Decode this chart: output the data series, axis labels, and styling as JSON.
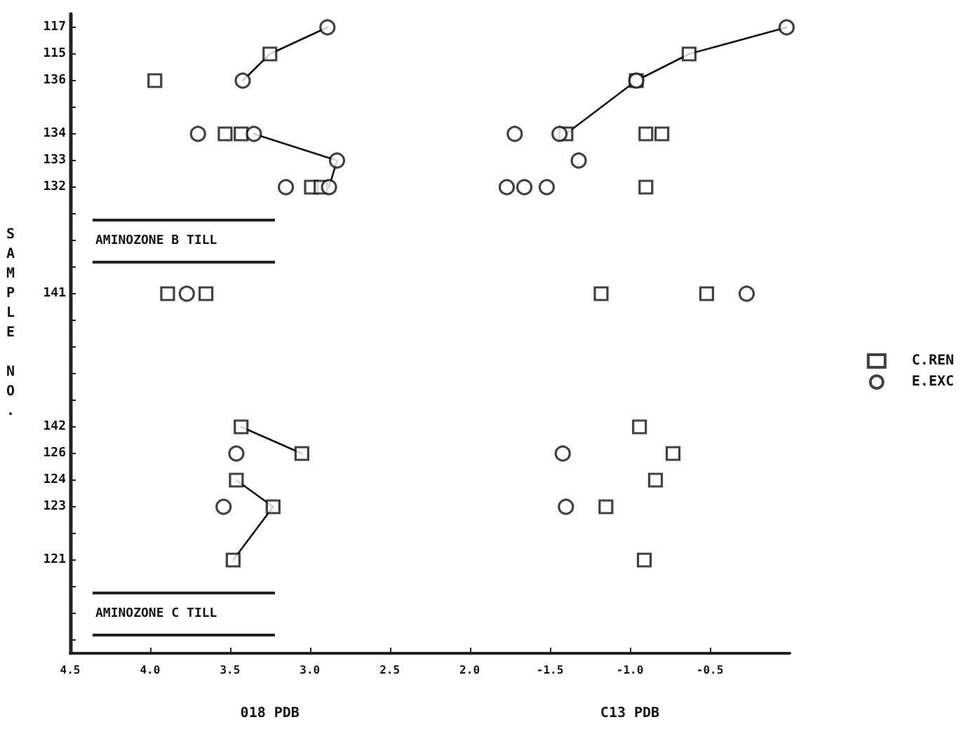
{
  "chart_data": [
    {
      "type": "scatter",
      "orientation": "horizontal",
      "xlabel": "018 PDB",
      "ylabel": "SAMPLE NO.",
      "legend": false,
      "categories": [
        "117",
        "115",
        "136",
        null,
        "134",
        "133",
        "132",
        null,
        null,
        null,
        "141",
        null,
        null,
        null,
        null,
        "142",
        "126",
        "124",
        "123",
        null,
        "121",
        null,
        null,
        null
      ],
      "xlim": [
        4.5,
        2.0
      ],
      "xticks": [
        {
          "value": 4.5,
          "label": "4.5"
        },
        {
          "value": 4,
          "label": "4.0"
        },
        {
          "value": 3.5,
          "label": "3.5"
        },
        {
          "value": 3,
          "label": "3.0"
        },
        {
          "value": 2.5,
          "label": "2.5"
        },
        {
          "value": 2,
          "label": "2.0"
        }
      ],
      "annotations": [
        "AMINOZONE B TILL",
        "AMINOZONE C TILL"
      ],
      "series": [
        {
          "type": "scatter",
          "marker": "square",
          "color": "#111111",
          "x": [
            "115",
            "136",
            "134",
            "134",
            "132",
            "132",
            "141",
            "141",
            "142",
            "126",
            "124",
            "123",
            "121"
          ],
          "values": [
            3.25,
            3.97,
            3.53,
            3.43,
            2.99,
            2.93,
            3.89,
            3.65,
            3.43,
            3.05,
            3.46,
            3.23,
            3.48
          ]
        },
        {
          "type": "scatter",
          "marker": "circle",
          "color": "#111111",
          "x": [
            "117",
            "136",
            "134",
            "134",
            "133",
            "132",
            "132",
            "141",
            "126",
            "123"
          ],
          "values": [
            2.89,
            3.42,
            3.7,
            3.35,
            2.83,
            3.15,
            2.88,
            3.77,
            3.46,
            3.54
          ]
        },
        {
          "type": "line",
          "marker": "none",
          "color": "#111111",
          "x": [
            "117",
            "115",
            "136"
          ],
          "values": [
            2.89,
            3.25,
            3.42
          ]
        },
        {
          "type": "line",
          "marker": "none",
          "color": "#111111",
          "x": [
            "134",
            "133",
            "132"
          ],
          "values": [
            3.35,
            2.83,
            2.88
          ]
        },
        {
          "type": "line",
          "marker": "none",
          "color": "#111111",
          "x": [
            "142",
            "126"
          ],
          "values": [
            3.43,
            3.05
          ]
        },
        {
          "type": "line",
          "marker": "none",
          "color": "#111111",
          "x": [
            "124",
            "123",
            "121"
          ],
          "values": [
            3.46,
            3.23,
            3.48
          ]
        }
      ]
    },
    {
      "type": "scatter",
      "orientation": "horizontal",
      "xlabel": "C13 PDB",
      "legend": "right",
      "tick_labels": "x",
      "categories": [
        "117",
        "115",
        "136",
        null,
        "134",
        "133",
        "132",
        null,
        null,
        null,
        "141",
        null,
        null,
        null,
        null,
        "142",
        "126",
        "124",
        "123",
        null,
        "121",
        null,
        null,
        null
      ],
      "xlim": [
        -2.0,
        0.0
      ],
      "xticks": [
        {
          "value": -1.5,
          "label": "-1.5"
        },
        {
          "value": -1,
          "label": "-1.0"
        },
        {
          "value": -0.5,
          "label": "-0.5"
        }
      ],
      "series": [
        {
          "name": "C.REN",
          "type": "scatter",
          "marker": "square",
          "color": "#111111",
          "x": [
            "115",
            "136",
            "134",
            "134",
            "134",
            "132",
            "141",
            "141",
            "142",
            "126",
            "124",
            "123",
            "121"
          ],
          "values": [
            -0.63,
            -0.96,
            -1.4,
            -0.9,
            -0.8,
            -0.9,
            -1.18,
            -0.52,
            -0.94,
            -0.73,
            -0.84,
            -1.15,
            -0.91
          ]
        },
        {
          "name": "E.EXC",
          "type": "scatter",
          "marker": "circle",
          "color": "#111111",
          "x": [
            "117",
            "136",
            "134",
            "134",
            "133",
            "132",
            "132",
            "132",
            "141",
            "126",
            "123"
          ],
          "values": [
            -0.02,
            -0.96,
            -1.72,
            -1.44,
            -1.32,
            -1.77,
            -1.66,
            -1.52,
            -0.27,
            -1.42,
            -1.4
          ]
        },
        {
          "type": "line",
          "marker": "none",
          "color": "#111111",
          "x": [
            "117",
            "115",
            "136",
            "134"
          ],
          "values": [
            -0.02,
            -0.63,
            -0.96,
            -1.4
          ]
        }
      ]
    }
  ]
}
